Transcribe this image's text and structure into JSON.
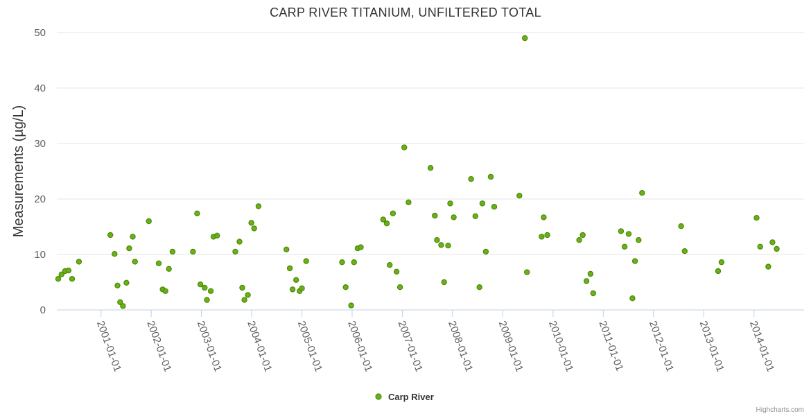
{
  "chart_data": {
    "type": "scatter",
    "title": "CARP RIVER TITANIUM, UNFILTERED TOTAL",
    "xlabel": "",
    "ylabel": "Measurements (µg/L)",
    "ylim": [
      0,
      50
    ],
    "yticks": [
      0,
      10,
      20,
      30,
      40,
      50
    ],
    "xlim": [
      "2000-02-15",
      "2014-12-31"
    ],
    "xticks": [
      "2001-01-01",
      "2002-01-01",
      "2003-01-01",
      "2004-01-01",
      "2005-01-01",
      "2006-01-01",
      "2007-01-01",
      "2008-01-01",
      "2009-01-01",
      "2010-01-01",
      "2011-01-01",
      "2012-01-01",
      "2013-01-01",
      "2014-01-01"
    ],
    "grid": true,
    "legend_position": "bottom-center",
    "series": [
      {
        "name": "Carp River",
        "color": "#6ab01e",
        "stroke": "#4d8a00",
        "points": [
          [
            "2000-02-25",
            5.6
          ],
          [
            "2000-03-20",
            6.4
          ],
          [
            "2000-04-15",
            7.0
          ],
          [
            "2000-05-10",
            7.1
          ],
          [
            "2000-06-05",
            5.6
          ],
          [
            "2000-07-25",
            8.7
          ],
          [
            "2001-03-10",
            13.5
          ],
          [
            "2001-04-10",
            10.1
          ],
          [
            "2001-05-01",
            4.4
          ],
          [
            "2001-05-20",
            1.4
          ],
          [
            "2001-06-10",
            0.7
          ],
          [
            "2001-07-05",
            4.9
          ],
          [
            "2001-07-25",
            11.1
          ],
          [
            "2001-08-20",
            13.2
          ],
          [
            "2001-09-05",
            8.7
          ],
          [
            "2001-12-15",
            16.0
          ],
          [
            "2002-02-25",
            8.4
          ],
          [
            "2002-03-25",
            3.7
          ],
          [
            "2002-04-15",
            3.4
          ],
          [
            "2002-05-10",
            7.4
          ],
          [
            "2002-06-05",
            10.5
          ],
          [
            "2002-11-01",
            10.5
          ],
          [
            "2002-12-01",
            17.4
          ],
          [
            "2002-12-25",
            4.6
          ],
          [
            "2003-01-25",
            4.0
          ],
          [
            "2003-02-10",
            1.8
          ],
          [
            "2003-03-10",
            3.4
          ],
          [
            "2003-03-30",
            13.2
          ],
          [
            "2003-04-25",
            13.4
          ],
          [
            "2003-09-05",
            10.5
          ],
          [
            "2003-10-05",
            12.3
          ],
          [
            "2003-10-25",
            4.0
          ],
          [
            "2003-11-10",
            1.8
          ],
          [
            "2003-12-05",
            2.7
          ],
          [
            "2003-12-30",
            15.7
          ],
          [
            "2004-01-20",
            14.7
          ],
          [
            "2004-02-20",
            18.7
          ],
          [
            "2004-09-10",
            10.9
          ],
          [
            "2004-10-05",
            7.5
          ],
          [
            "2004-10-25",
            3.7
          ],
          [
            "2004-11-20",
            5.4
          ],
          [
            "2004-12-15",
            3.4
          ],
          [
            "2005-01-01",
            3.9
          ],
          [
            "2005-02-01",
            8.8
          ],
          [
            "2005-10-20",
            8.6
          ],
          [
            "2005-11-15",
            4.1
          ],
          [
            "2005-12-25",
            0.8
          ],
          [
            "2006-01-15",
            8.6
          ],
          [
            "2006-02-10",
            11.1
          ],
          [
            "2006-03-05",
            11.3
          ],
          [
            "2006-08-15",
            16.3
          ],
          [
            "2006-09-10",
            15.6
          ],
          [
            "2006-10-01",
            8.1
          ],
          [
            "2006-10-25",
            17.4
          ],
          [
            "2006-11-20",
            6.9
          ],
          [
            "2006-12-15",
            4.1
          ],
          [
            "2007-01-15",
            29.3
          ],
          [
            "2007-02-15",
            19.4
          ],
          [
            "2007-07-25",
            25.6
          ],
          [
            "2007-08-25",
            17.0
          ],
          [
            "2007-09-10",
            12.6
          ],
          [
            "2007-10-10",
            11.7
          ],
          [
            "2007-11-01",
            5.0
          ],
          [
            "2007-11-30",
            11.6
          ],
          [
            "2007-12-15",
            19.2
          ],
          [
            "2008-01-10",
            16.7
          ],
          [
            "2008-05-15",
            23.6
          ],
          [
            "2008-06-15",
            16.9
          ],
          [
            "2008-07-15",
            4.1
          ],
          [
            "2008-08-05",
            19.2
          ],
          [
            "2008-08-30",
            10.5
          ],
          [
            "2008-10-05",
            24.0
          ],
          [
            "2008-10-30",
            18.6
          ],
          [
            "2009-05-01",
            20.6
          ],
          [
            "2009-06-10",
            49.0
          ],
          [
            "2009-06-25",
            6.8
          ],
          [
            "2009-10-10",
            13.2
          ],
          [
            "2009-10-25",
            16.7
          ],
          [
            "2009-11-20",
            13.5
          ],
          [
            "2010-07-10",
            12.6
          ],
          [
            "2010-08-05",
            13.5
          ],
          [
            "2010-09-01",
            5.2
          ],
          [
            "2010-09-30",
            6.5
          ],
          [
            "2010-10-20",
            3.0
          ],
          [
            "2011-05-10",
            14.2
          ],
          [
            "2011-06-05",
            11.4
          ],
          [
            "2011-07-05",
            13.7
          ],
          [
            "2011-08-01",
            2.1
          ],
          [
            "2011-08-20",
            8.8
          ],
          [
            "2011-09-15",
            12.6
          ],
          [
            "2011-10-10",
            21.1
          ],
          [
            "2012-07-20",
            15.1
          ],
          [
            "2012-08-15",
            10.6
          ],
          [
            "2013-04-15",
            7.0
          ],
          [
            "2013-05-10",
            8.6
          ],
          [
            "2014-01-20",
            16.6
          ],
          [
            "2014-02-15",
            11.4
          ],
          [
            "2014-04-15",
            7.8
          ],
          [
            "2014-05-15",
            12.2
          ],
          [
            "2014-06-15",
            11.0
          ]
        ]
      }
    ],
    "credit": "Highcharts.com"
  }
}
